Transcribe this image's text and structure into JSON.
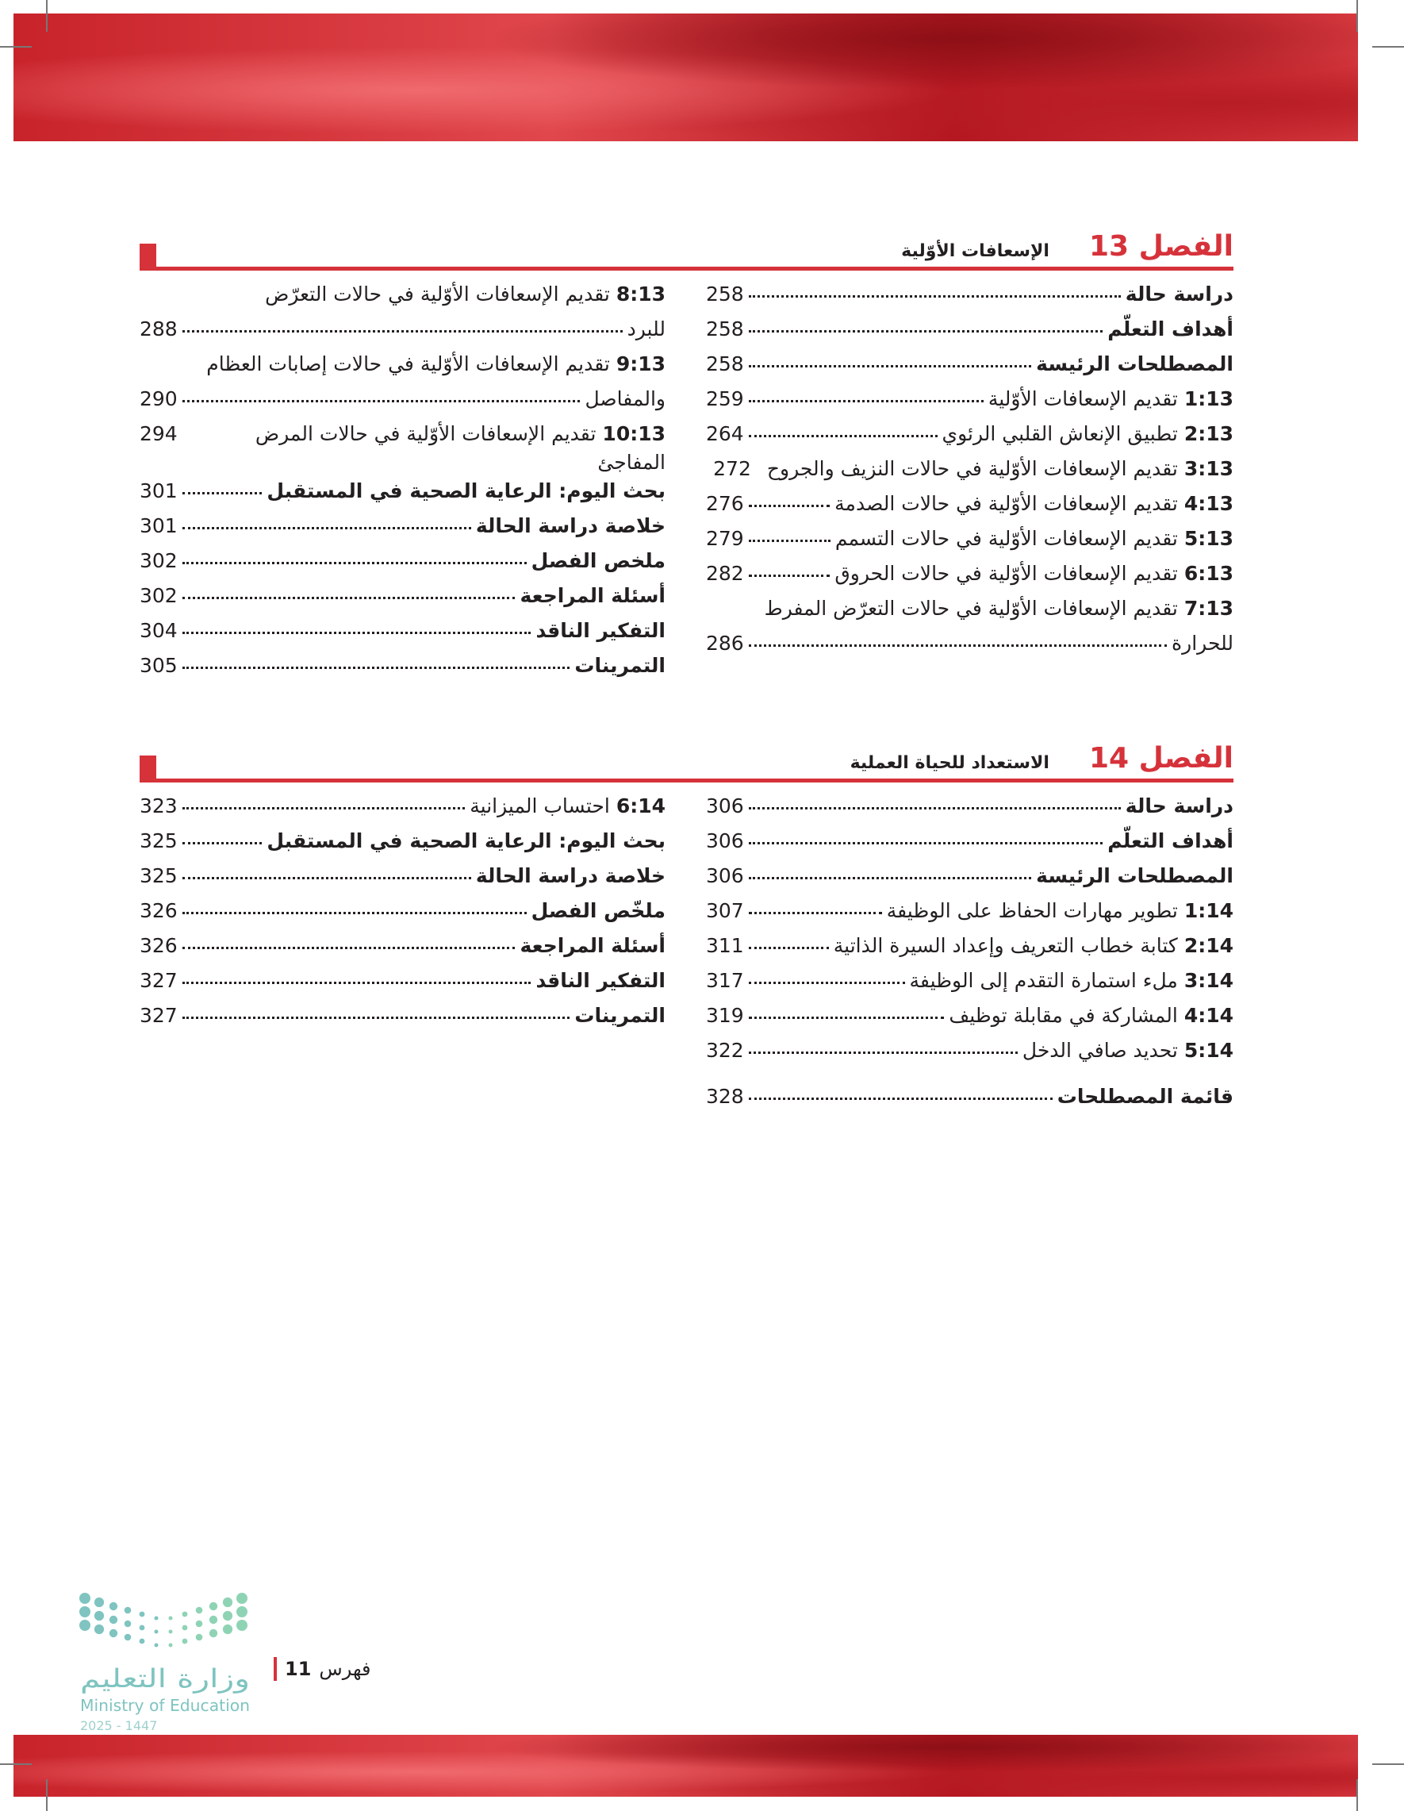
{
  "chapters": [
    {
      "label": "الفصل 13",
      "title": "الإسعافات الأوّلية",
      "right": [
        {
          "num": "",
          "text": "دراسة حالة",
          "bold": true,
          "page": "258"
        },
        {
          "num": "",
          "text": "أهداف التعلّم",
          "bold": true,
          "page": "258"
        },
        {
          "num": "",
          "text": "المصطلحات الرئيسة",
          "bold": true,
          "page": "258"
        },
        {
          "num": "1:13",
          "text": "تقديم الإسعافات الأوّلية",
          "bold": false,
          "page": "259"
        },
        {
          "num": "2:13",
          "text": "تطبيق الإنعاش القلبي الرئوي",
          "bold": false,
          "page": "264"
        },
        {
          "num": "3:13",
          "text": "تقديم الإسعافات الأوّلية في حالات النزيف والجروح",
          "bold": false,
          "page": "272",
          "noleader": true
        },
        {
          "num": "4:13",
          "text": "تقديم الإسعافات الأوّلية في حالات الصدمة",
          "bold": false,
          "page": "276"
        },
        {
          "num": "5:13",
          "text": "تقديم الإسعافات الأوّلية في حالات التسمم",
          "bold": false,
          "page": "279"
        },
        {
          "num": "6:13",
          "text": "تقديم الإسعافات الأوّلية في حالات الحروق",
          "bold": false,
          "page": "282"
        },
        {
          "num": "7:13",
          "text": "تقديم الإسعافات الأوّلية في حالات التعرّض المفرط",
          "bold": false,
          "page": ""
        },
        {
          "num": "",
          "text": "للحرارة",
          "bold": false,
          "page": "286"
        }
      ],
      "left": [
        {
          "num": "8:13",
          "text": "تقديم الإسعافات الأوّلية في حالات التعرّض",
          "bold": false,
          "page": ""
        },
        {
          "num": "",
          "text": "للبرد",
          "bold": false,
          "page": "288"
        },
        {
          "num": "9:13",
          "text": "تقديم الإسعافات الأوّلية في حالات إصابات العظام",
          "bold": false,
          "page": ""
        },
        {
          "num": "",
          "text": "والمفاصل",
          "bold": false,
          "page": "290"
        },
        {
          "num": "10:13",
          "text": "تقديم الإسعافات الأوّلية في حالات المرض المفاجئ",
          "bold": false,
          "page": "294",
          "noleader": true
        },
        {
          "num": "",
          "text": "بحث اليوم: الرعاية الصحية في المستقبل",
          "bold": true,
          "page": "301"
        },
        {
          "num": "",
          "text": "خلاصة دراسة الحالة",
          "bold": true,
          "page": "301"
        },
        {
          "num": "",
          "text": "ملخص الفصل",
          "bold": true,
          "page": "302"
        },
        {
          "num": "",
          "text": "أسئلة المراجعة",
          "bold": true,
          "page": "302"
        },
        {
          "num": "",
          "text": "التفكير الناقد",
          "bold": true,
          "page": "304"
        },
        {
          "num": "",
          "text": "التمرينات",
          "bold": true,
          "page": "305"
        }
      ]
    },
    {
      "label": "الفصل 14",
      "title": "الاستعداد للحياة العملية",
      "right": [
        {
          "num": "",
          "text": "دراسة حالة",
          "bold": true,
          "page": "306"
        },
        {
          "num": "",
          "text": "أهداف التعلّم",
          "bold": true,
          "page": "306"
        },
        {
          "num": "",
          "text": "المصطلحات الرئيسة",
          "bold": true,
          "page": "306"
        },
        {
          "num": "1:14",
          "text": "تطوير مهارات الحفاظ على الوظيفة",
          "bold": false,
          "page": "307"
        },
        {
          "num": "2:14",
          "text": "كتابة خطاب التعريف وإعداد السيرة الذاتية",
          "bold": false,
          "page": "311"
        },
        {
          "num": "3:14",
          "text": "ملء استمارة التقدم إلى الوظيفة",
          "bold": false,
          "page": "317"
        },
        {
          "num": "4:14",
          "text": "المشاركة في مقابلة توظيف",
          "bold": false,
          "page": "319"
        },
        {
          "num": "5:14",
          "text": "تحديد صافي الدخل",
          "bold": false,
          "page": "322"
        }
      ],
      "left": [
        {
          "num": "6:14",
          "text": "احتساب الميزانية",
          "bold": false,
          "page": "323"
        },
        {
          "num": "",
          "text": "بحث اليوم: الرعاية الصحية في المستقبل",
          "bold": true,
          "page": "325"
        },
        {
          "num": "",
          "text": "خلاصة دراسة الحالة",
          "bold": true,
          "page": "325"
        },
        {
          "num": "",
          "text": "ملخّص الفصل",
          "bold": true,
          "page": "326"
        },
        {
          "num": "",
          "text": "أسئلة المراجعة",
          "bold": true,
          "page": "326"
        },
        {
          "num": "",
          "text": "التفكير الناقد",
          "bold": true,
          "page": "327"
        },
        {
          "num": "",
          "text": "التمرينات",
          "bold": true,
          "page": "327"
        }
      ]
    }
  ],
  "glossary": {
    "text": "قائمة المصطلحات",
    "page": "328"
  },
  "footer": {
    "section": "فهرس",
    "page_number": "11"
  },
  "logo": {
    "arabic": "وزارة التعليم",
    "english": "Ministry of Education",
    "year": "2025 - 1447",
    "colors": [
      "#7fc4c0",
      "#8fd3b5"
    ]
  },
  "accent": "#d6323a"
}
